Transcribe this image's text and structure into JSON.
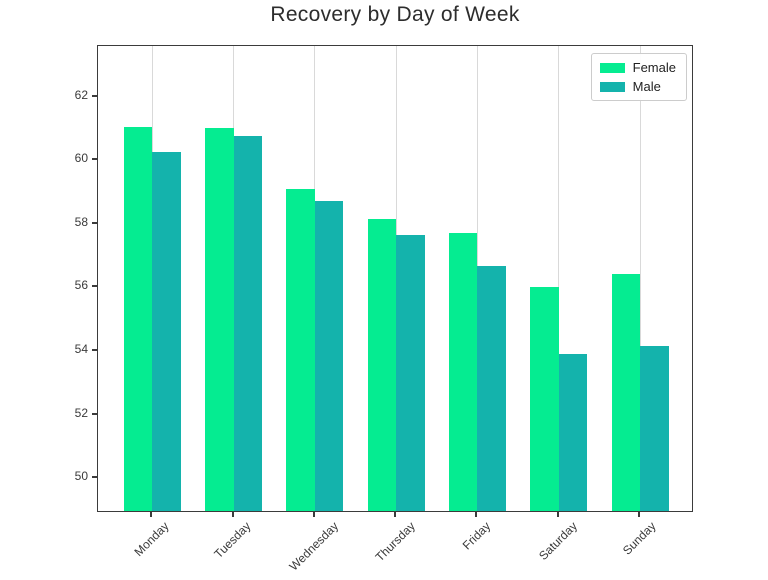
{
  "title": "Recovery by Day of Week",
  "colors": {
    "female": "#05ec91",
    "male": "#14b3ac",
    "gridline": "#d9d9d9",
    "spine": "#3b3b3b",
    "tick_text": "#3a3a3a",
    "title_text": "#2d2d2d",
    "legend_border": "#cccccc",
    "background": "#ffffff"
  },
  "legend": {
    "position": "upper right",
    "entries": [
      {
        "label": "Female",
        "color": "#05ec91"
      },
      {
        "label": "Male",
        "color": "#14b3ac"
      }
    ]
  },
  "chart_data": {
    "type": "bar",
    "title": "Recovery by Day of Week",
    "xlabel": "",
    "ylabel": "",
    "categories": [
      "Monday",
      "Tuesday",
      "Wednesday",
      "Thursday",
      "Friday",
      "Saturday",
      "Sunday"
    ],
    "series": [
      {
        "name": "Female",
        "color": "#05ec91",
        "values": [
          61.0,
          60.95,
          59.05,
          58.1,
          57.65,
          55.95,
          56.35
        ]
      },
      {
        "name": "Male",
        "color": "#14b3ac",
        "values": [
          60.2,
          60.7,
          58.65,
          57.6,
          56.6,
          53.85,
          54.1
        ]
      }
    ],
    "yticks": [
      50,
      52,
      54,
      56,
      58,
      60,
      62
    ],
    "ylim": [
      48.9,
      63.6
    ],
    "grid": "vertical gridlines at each category, no horizontal gridlines",
    "legend_position": "upper right",
    "xtick_rotation": 45
  }
}
